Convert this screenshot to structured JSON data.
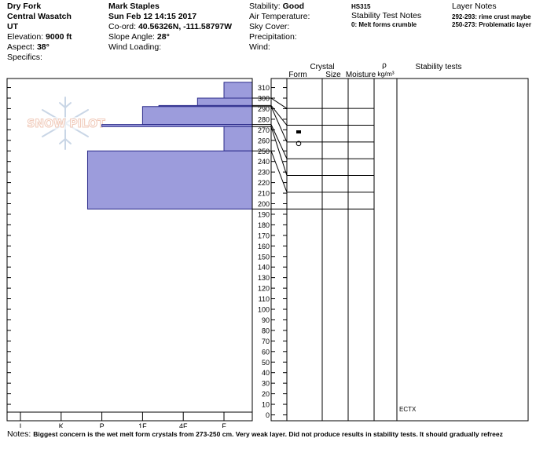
{
  "header": {
    "location": "Dry Fork",
    "range": "Central Wasatch",
    "state": "UT",
    "elevation_label": "Elevation:",
    "elevation_value": "9000 ft",
    "aspect_label": "Aspect:",
    "aspect_value": "38°",
    "specifics_label": "Specifics:",
    "observer": "Mark Staples",
    "datetime": "Sun Feb 12 14:15 2017",
    "coord_label": "Co-ord:",
    "coord_value": "40.56326N, -111.58797W",
    "slope_label": "Slope Angle:",
    "slope_value": "28°",
    "wind_loading_label": "Wind Loading:",
    "stability_label": "Stability:",
    "stability_value": "Good",
    "air_temp_label": "Air Temperature:",
    "sky_label": "Sky Cover:",
    "precip_label": "Precipitation:",
    "wind_label": "Wind:",
    "hs": "HS315",
    "stability_notes_title": "Stability Test Notes",
    "stability_notes": [
      "0: Melt forms crumble"
    ],
    "layer_notes_title": "Layer Notes",
    "layer_notes": [
      "292-293: rime crust maybe",
      "250-273: Problematic layer"
    ]
  },
  "logo_text": "SNOW PILOT",
  "columns": {
    "crystal": "Crystal",
    "form": "Form",
    "size": "Size",
    "moisture": "Moisture",
    "rho": "ρ",
    "rho_unit": "kg/m³",
    "stability_tests": "Stability tests"
  },
  "notes_label": "Notes:",
  "notes_text": "Biggest concern is the wet melt form crystals from 273-250 cm. Very weak layer. Did not produce results in stability tests. It should gradually refreez",
  "chart_data": {
    "type": "bar",
    "orientation": "horizontal",
    "xlabel": "",
    "ylabel": "",
    "hardness_ticks": [
      "I",
      "K",
      "P",
      "1F",
      "4F",
      "F"
    ],
    "ylim": [
      0,
      315
    ],
    "y_ticks": [
      0,
      10,
      20,
      30,
      40,
      50,
      60,
      70,
      80,
      90,
      100,
      110,
      120,
      130,
      140,
      150,
      160,
      170,
      180,
      190,
      200,
      210,
      220,
      230,
      240,
      250,
      260,
      270,
      280,
      290,
      300,
      310
    ],
    "hardness_layers": [
      {
        "top": 315,
        "bottom": 300,
        "hardness": 5.0
      },
      {
        "top": 300,
        "bottom": 293,
        "hardness": 4.35
      },
      {
        "top": 293,
        "bottom": 292,
        "hardness": 3.4
      },
      {
        "top": 292,
        "bottom": 275,
        "hardness": 3.0
      },
      {
        "top": 275,
        "bottom": 273,
        "hardness": 2.0
      },
      {
        "top": 273,
        "bottom": 250,
        "hardness": 5.0
      },
      {
        "top": 250,
        "bottom": 195,
        "hardness": 1.65
      }
    ],
    "layer_boundaries": [
      300,
      293,
      292,
      275,
      273,
      250,
      195
    ],
    "crystal_symbols": [
      {
        "y": 268,
        "symbol": "bar"
      },
      {
        "y": 257,
        "symbol": "circle"
      }
    ],
    "test_results": [
      {
        "y": 5,
        "label": "ECTX"
      }
    ]
  }
}
